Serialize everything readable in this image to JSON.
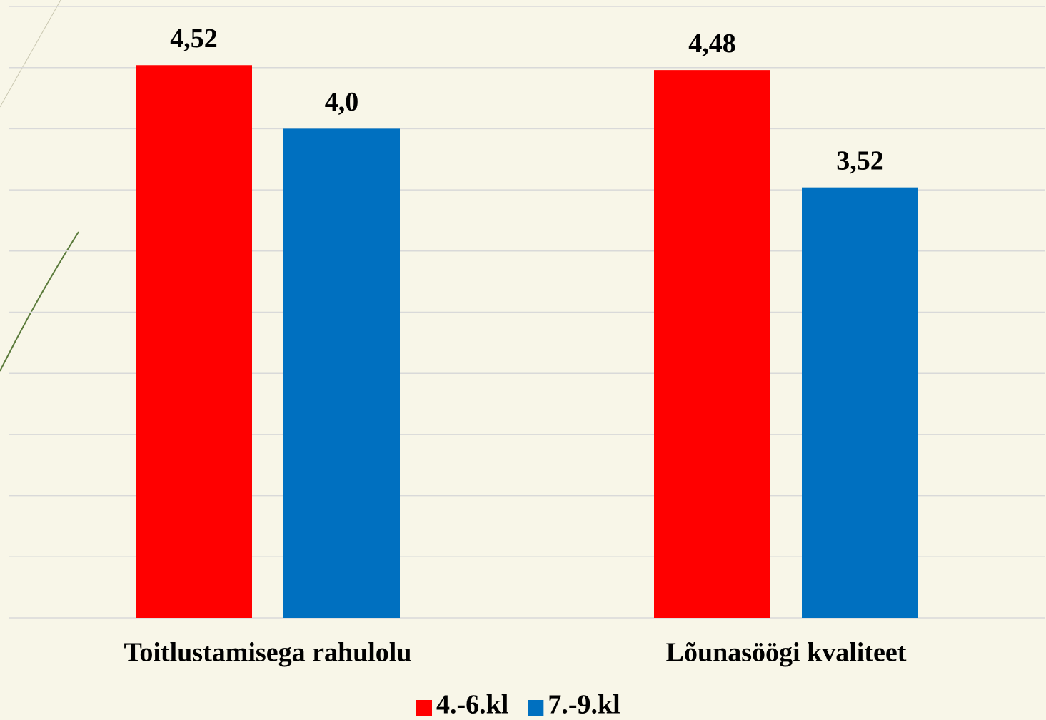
{
  "chart_data": {
    "type": "bar",
    "categories": [
      "Toitlustamisega rahulolu",
      "Lõunasöögi kvaliteet"
    ],
    "series": [
      {
        "name": "4.-6.kl",
        "color": "#ff0000",
        "values": [
          4.52,
          4.48
        ],
        "value_labels": [
          "4,52",
          "4,48"
        ]
      },
      {
        "name": "7.-9.kl",
        "color": "#0070c0",
        "values": [
          4.0,
          3.52
        ],
        "value_labels": [
          "4,0",
          "3,52"
        ]
      }
    ],
    "ylim": [
      0,
      5
    ],
    "yticks": [
      0,
      0.5,
      1,
      1.5,
      2,
      2.5,
      3,
      3.5,
      4,
      4.5,
      5
    ],
    "grid": true,
    "legend": "bottom"
  }
}
